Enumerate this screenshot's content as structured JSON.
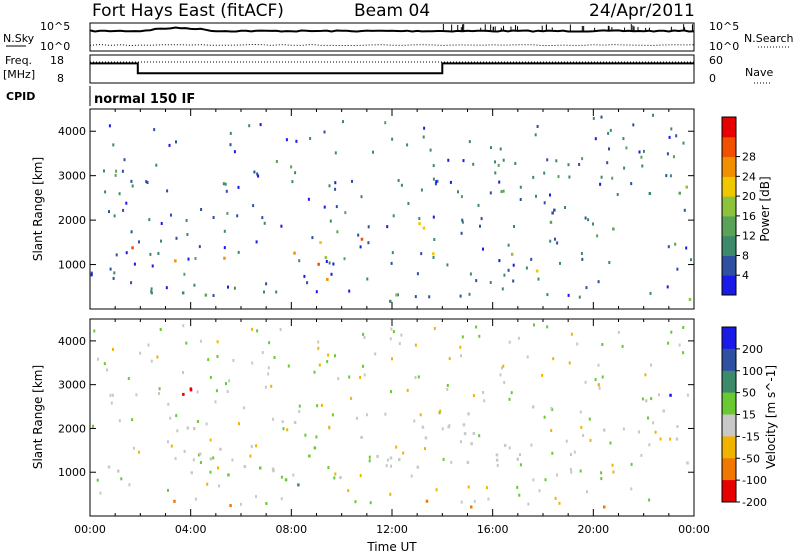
{
  "header": {
    "station": "Fort Hays East (fitACF)",
    "beam": "Beam 04",
    "date": "24/Apr/2011"
  },
  "status_panel": {
    "nsky_label": "N.Sky",
    "nsky_ticks": [
      "10^5",
      "10^0"
    ],
    "nsearch_label": "N.Search",
    "nsearch_ticks": [
      "10^5",
      "10^0"
    ],
    "freq_label_1": "Freq.",
    "freq_label_2": "[MHz]",
    "freq_ticks": [
      "18",
      "8"
    ],
    "nave_label": "Nave",
    "nave_ticks": [
      "60",
      "0"
    ],
    "cpid_label": "CPID",
    "cpid_value": "normal 150 IF",
    "freq_series_mhz": [
      {
        "t": 0,
        "v": 15
      },
      {
        "t": 1.9,
        "v": 15
      },
      {
        "t": 1.9,
        "v": 11.5
      },
      {
        "t": 14.0,
        "v": 11.5
      },
      {
        "t": 14.0,
        "v": 15
      },
      {
        "t": 24,
        "v": 15
      }
    ]
  },
  "chart_data": [
    {
      "type": "heatmap",
      "name": "power-panel",
      "xlabel": "",
      "ylabel": "Slant Range [km]",
      "xlim": [
        0,
        24
      ],
      "ylim": [
        0,
        4500
      ],
      "yticks": [
        "1000",
        "2000",
        "3000",
        "4000"
      ],
      "colorbar_label": "Power [dB]",
      "colorbar_ticks": [
        "4",
        "8",
        "12",
        "16",
        "20",
        "24",
        "28"
      ],
      "colors": [
        "#1a1ae6",
        "#2f4fa0",
        "#3d8a6a",
        "#5aa25a",
        "#8cc23c",
        "#f0c800",
        "#f09000",
        "#f05000",
        "#e60000"
      ],
      "features": [
        {
          "t_start": 0.0,
          "t_end": 2.0,
          "r_start": 1200,
          "r_end": 1700,
          "level": 26
        },
        {
          "t_start": 1.8,
          "t_end": 3.5,
          "r_start": 800,
          "r_end": 1300,
          "level": 20
        },
        {
          "t_start": 5.0,
          "t_end": 11.0,
          "r_start": 700,
          "r_end": 1700,
          "level": 22
        },
        {
          "t_start": 11.0,
          "t_end": 14.0,
          "r_start": 1200,
          "r_end": 2000,
          "level": 18
        },
        {
          "t_start": 15.5,
          "t_end": 18.5,
          "r_start": 700,
          "r_end": 1300,
          "level": 20
        },
        {
          "t_start": 18.0,
          "t_end": 24.0,
          "r_start": 1800,
          "r_end": 2800,
          "level": 12
        },
        {
          "t_start": 0.0,
          "t_end": 24.0,
          "r_start": 200,
          "r_end": 400,
          "level": 12
        }
      ]
    },
    {
      "type": "heatmap",
      "name": "velocity-panel",
      "xlabel": "Time UT",
      "ylabel": "Slant Range [km]",
      "xlim": [
        0,
        24
      ],
      "ylim": [
        0,
        4500
      ],
      "xticks": [
        "00:00",
        "04:00",
        "08:00",
        "12:00",
        "16:00",
        "20:00",
        "00:00"
      ],
      "yticks": [
        "1000",
        "2000",
        "3000",
        "4000"
      ],
      "colorbar_label": "Velocity [m s^-1]",
      "colorbar_ticks": [
        "200",
        "100",
        "50",
        "15",
        "-15",
        "-50",
        "-100",
        "-200"
      ],
      "colors": [
        "#1a1ae6",
        "#2f4fa0",
        "#3d8a6a",
        "#6ac832",
        "#c8c8c8",
        "#f0b400",
        "#f07800",
        "#e60000"
      ],
      "features": [
        {
          "t_start": 0.0,
          "t_end": 14.0,
          "r_start": 900,
          "r_end": 2200,
          "level": 0
        },
        {
          "t_start": 5.0,
          "t_end": 11.0,
          "r_start": 800,
          "r_end": 1600,
          "level": 30
        },
        {
          "t_start": 7.5,
          "t_end": 9.0,
          "r_start": 700,
          "r_end": 1100,
          "level": 60
        },
        {
          "t_start": 3.5,
          "t_end": 6.5,
          "r_start": 2800,
          "r_end": 3600,
          "level": -220
        },
        {
          "t_start": 14.0,
          "t_end": 24.0,
          "r_start": 1200,
          "r_end": 2700,
          "level": 0
        },
        {
          "t_start": 22.0,
          "t_end": 23.5,
          "r_start": 2500,
          "r_end": 3200,
          "level": 220
        },
        {
          "t_start": 0.0,
          "t_end": 24.0,
          "r_start": 200,
          "r_end": 400,
          "level": -60
        }
      ]
    }
  ]
}
